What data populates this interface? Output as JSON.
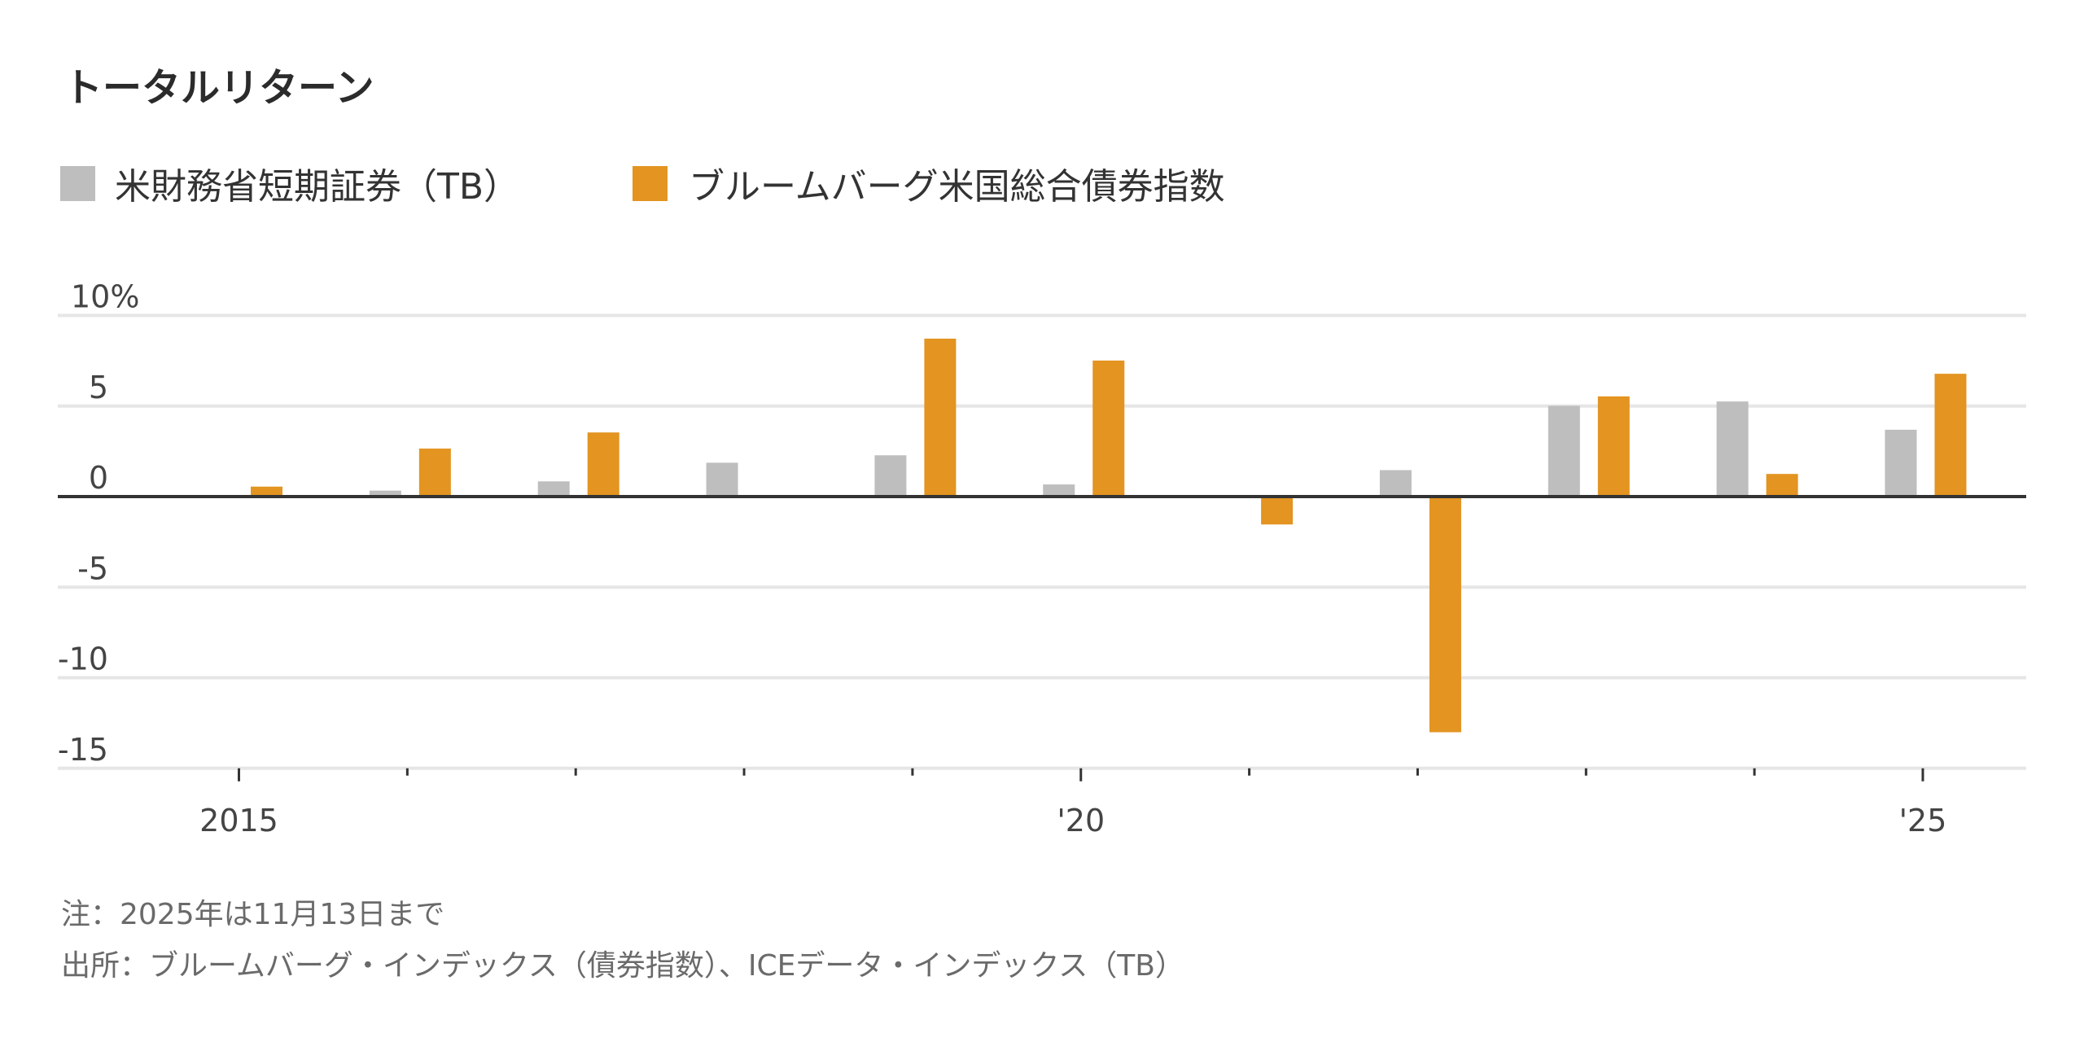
{
  "colors": {
    "tb": "#bebebe",
    "agg": "#e39421",
    "grid": "#e6e6e6",
    "zero": "#333333"
  },
  "chart_data": {
    "type": "bar",
    "title": "トータルリターン",
    "legend": [
      "米財務省短期証券（TB）",
      "ブルームバーグ米国総合債券指数"
    ],
    "legend_placement": "top-left",
    "categories": [
      2015,
      2016,
      2017,
      2018,
      2019,
      2020,
      2021,
      2022,
      2023,
      2024,
      2025
    ],
    "series": [
      {
        "name": "米財務省短期証券（TB）",
        "values": [
          0.05,
          0.33,
          0.84,
          1.87,
          2.28,
          0.67,
          0.05,
          1.46,
          5.01,
          5.25,
          3.69
        ]
      },
      {
        "name": "ブルームバーグ米国総合債券指数",
        "values": [
          0.55,
          2.65,
          3.54,
          0.01,
          8.72,
          7.51,
          -1.54,
          -13.01,
          5.53,
          1.25,
          6.78
        ]
      }
    ],
    "ylim": [
      -15,
      10
    ],
    "yticks": [
      10,
      5,
      0,
      -5,
      -10,
      -15
    ],
    "ytick_labels": [
      "10%",
      "5",
      "0",
      "-5",
      "-10",
      "-15"
    ],
    "xtick_labels": [
      {
        "year": 2015,
        "label": "2015"
      },
      {
        "year": 2020,
        "label": "'20"
      },
      {
        "year": 2025,
        "label": "'25"
      }
    ],
    "grid": true,
    "xlabel": "",
    "ylabel": ""
  },
  "notes": {
    "note": "注：2025年は11月13日まで",
    "source": "出所：ブルームバーグ・インデックス（債券指数）、ICEデータ・インデックス（TB）"
  }
}
